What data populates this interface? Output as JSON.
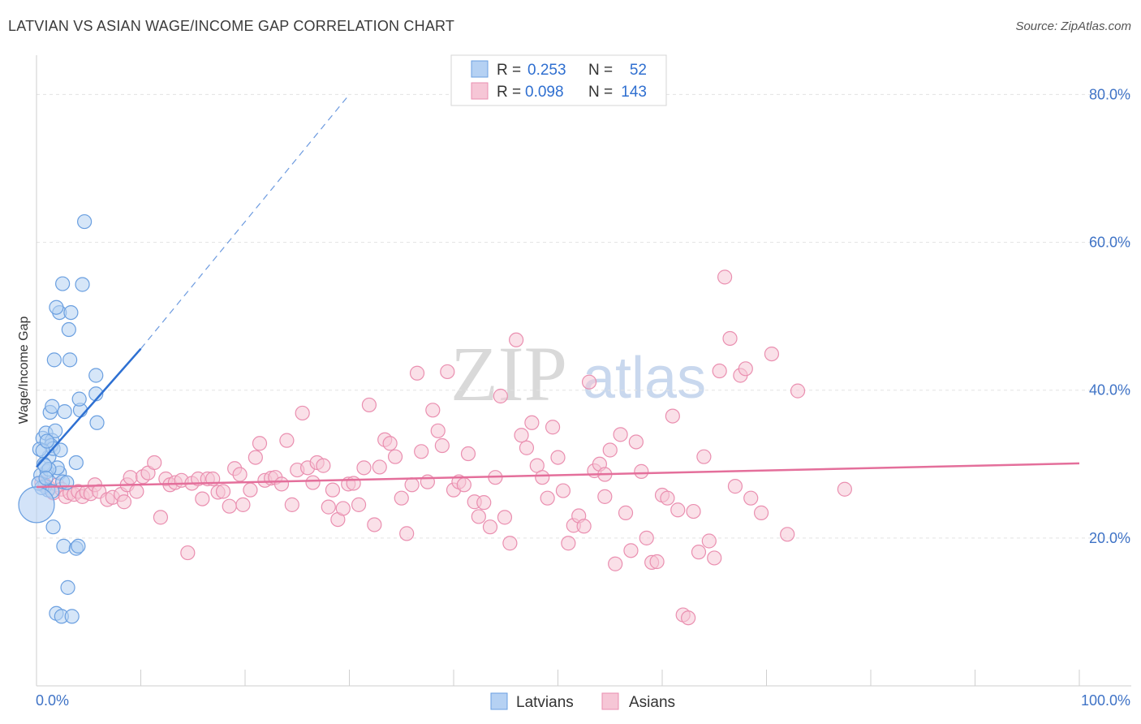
{
  "title": "LATVIAN VS ASIAN WAGE/INCOME GAP CORRELATION CHART",
  "source": "Source: ZipAtlas.com",
  "colors": {
    "latvian_fill": "#b5d1f3",
    "latvian_stroke": "#6a9fe0",
    "latvian_line": "#2e70d2",
    "asian_fill": "#f6c6d6",
    "asian_stroke": "#ea8fb0",
    "asian_line": "#e46f9b",
    "tick_label": "#3f73c6",
    "grid": "#e3e3e3"
  },
  "stats": [
    {
      "r_label": "R =",
      "r_value": "0.253",
      "n_label": "N =",
      "n_value": "52"
    },
    {
      "r_label": "R =",
      "r_value": "0.098",
      "n_label": "N =",
      "n_value": "143"
    }
  ],
  "watermark": {
    "zip": "ZIP",
    "atlas": "atlas"
  },
  "chart_data": {
    "type": "scatter",
    "title": "LATVIAN VS ASIAN WAGE/INCOME GAP CORRELATION CHART",
    "xlabel": "",
    "ylabel": "Wage/Income Gap",
    "xlim": [
      0,
      100
    ],
    "ylim": [
      0,
      84
    ],
    "x_tick_labels": [
      "0.0%",
      "100.0%"
    ],
    "y_ticks": [
      20,
      40,
      60,
      80
    ],
    "y_tick_labels": [
      "20.0%",
      "40.0%",
      "60.0%",
      "80.0%"
    ],
    "legend": [
      "Latvians",
      "Asians"
    ],
    "series": [
      {
        "name": "Latvians",
        "r": 0.253,
        "n": 52,
        "trend": {
          "x0": 0,
          "y0": 29.6,
          "x1": 10,
          "y1": 45.6,
          "dashed_to_x": 30,
          "dashed_to_y": 80
        },
        "points": [
          [
            0.4,
            28.5
          ],
          [
            0.8,
            27
          ],
          [
            1.0,
            29
          ],
          [
            1.2,
            31
          ],
          [
            0.6,
            33.5
          ],
          [
            0.9,
            34.2
          ],
          [
            1.5,
            33.2
          ],
          [
            1.4,
            32.5
          ],
          [
            1.8,
            34.5
          ],
          [
            1.1,
            26.5
          ],
          [
            2.2,
            28.8
          ],
          [
            2.0,
            29.5
          ],
          [
            2.5,
            27.6
          ],
          [
            3.8,
            30.2
          ],
          [
            1.3,
            37
          ],
          [
            1.5,
            37.8
          ],
          [
            2.7,
            37.1
          ],
          [
            4.2,
            37.3
          ],
          [
            4.1,
            38.8
          ],
          [
            5.7,
            39.5
          ],
          [
            5.7,
            42
          ],
          [
            5.8,
            35.6
          ],
          [
            1.7,
            44.1
          ],
          [
            3.2,
            44.1
          ],
          [
            3.1,
            48.2
          ],
          [
            2.2,
            50.5
          ],
          [
            1.9,
            51.2
          ],
          [
            3.3,
            50.5
          ],
          [
            2.5,
            54.4
          ],
          [
            4.4,
            54.3
          ],
          [
            4.6,
            62.8
          ],
          [
            1.6,
            21.5
          ],
          [
            2.6,
            18.9
          ],
          [
            3.8,
            18.6
          ],
          [
            4.0,
            18.9
          ],
          [
            3.0,
            13.3
          ],
          [
            1.9,
            9.8
          ],
          [
            2.4,
            9.4
          ],
          [
            3.4,
            9.4
          ],
          [
            0.5,
            26.8
          ],
          [
            0.7,
            30
          ],
          [
            1.6,
            32.1
          ],
          [
            2.3,
            31.9
          ],
          [
            0.3,
            32
          ],
          [
            0.6,
            31.8
          ],
          [
            1.2,
            29.3
          ],
          [
            1.0,
            33.1
          ],
          [
            2.9,
            27.5
          ],
          [
            1.5,
            26.3
          ],
          [
            0.2,
            27.4
          ],
          [
            0.8,
            29.8
          ],
          [
            0.9,
            28.1
          ]
        ],
        "big_point": [
          0,
          24.5
        ]
      },
      {
        "name": "Asians",
        "r": 0.098,
        "n": 143,
        "trend": {
          "x0": 0,
          "y0": 26.9,
          "x1": 100,
          "y1": 30.1
        },
        "points": [
          [
            0.5,
            27.5
          ],
          [
            0.8,
            27.2
          ],
          [
            1.2,
            26.8
          ],
          [
            1.6,
            26.1
          ],
          [
            2.0,
            27.2
          ],
          [
            2.4,
            26.6
          ],
          [
            2.8,
            25.6
          ],
          [
            3.2,
            26.1
          ],
          [
            3.6,
            25.9
          ],
          [
            4.0,
            26.3
          ],
          [
            4.4,
            25.6
          ],
          [
            4.8,
            26.2
          ],
          [
            5.2,
            26.0
          ],
          [
            5.6,
            27.2
          ],
          [
            6.0,
            26.3
          ],
          [
            6.8,
            25.2
          ],
          [
            7.3,
            25.5
          ],
          [
            8.1,
            25.9
          ],
          [
            8.4,
            24.9
          ],
          [
            8.7,
            27.2
          ],
          [
            9.0,
            28.2
          ],
          [
            9.6,
            26.3
          ],
          [
            10.2,
            28.3
          ],
          [
            10.7,
            28.8
          ],
          [
            11.3,
            30.2
          ],
          [
            11.9,
            22.8
          ],
          [
            12.4,
            28.0
          ],
          [
            12.8,
            27.2
          ],
          [
            13.3,
            27.5
          ],
          [
            13.9,
            27.8
          ],
          [
            14.5,
            18.0
          ],
          [
            14.9,
            27.4
          ],
          [
            15.5,
            28.0
          ],
          [
            15.9,
            25.3
          ],
          [
            16.4,
            28.0
          ],
          [
            16.9,
            28.0
          ],
          [
            17.4,
            26.2
          ],
          [
            17.9,
            26.3
          ],
          [
            18.5,
            24.3
          ],
          [
            19.0,
            29.4
          ],
          [
            19.5,
            28.6
          ],
          [
            19.8,
            24.5
          ],
          [
            20.5,
            26.5
          ],
          [
            21.0,
            30.9
          ],
          [
            21.4,
            32.8
          ],
          [
            21.9,
            27.8
          ],
          [
            22.5,
            28.1
          ],
          [
            22.9,
            28.2
          ],
          [
            23.5,
            27.3
          ],
          [
            24.0,
            33.2
          ],
          [
            24.5,
            24.5
          ],
          [
            25.0,
            29.2
          ],
          [
            25.5,
            36.9
          ],
          [
            26.0,
            29.5
          ],
          [
            26.5,
            27.5
          ],
          [
            26.9,
            30.2
          ],
          [
            27.5,
            29.8
          ],
          [
            28.0,
            24.2
          ],
          [
            28.4,
            26.5
          ],
          [
            28.9,
            22.5
          ],
          [
            29.4,
            24.0
          ],
          [
            29.9,
            27.3
          ],
          [
            30.4,
            27.4
          ],
          [
            30.9,
            24.5
          ],
          [
            31.4,
            29.5
          ],
          [
            31.9,
            38.0
          ],
          [
            32.4,
            21.8
          ],
          [
            32.9,
            29.6
          ],
          [
            33.4,
            33.3
          ],
          [
            33.9,
            32.8
          ],
          [
            34.4,
            31.0
          ],
          [
            35.0,
            25.4
          ],
          [
            35.5,
            20.6
          ],
          [
            36.0,
            27.2
          ],
          [
            36.5,
            42.3
          ],
          [
            36.9,
            31.7
          ],
          [
            37.5,
            27.6
          ],
          [
            38.0,
            37.3
          ],
          [
            38.5,
            34.5
          ],
          [
            38.9,
            32.5
          ],
          [
            39.4,
            42.5
          ],
          [
            40.0,
            26.5
          ],
          [
            40.5,
            27.6
          ],
          [
            41.0,
            27.2
          ],
          [
            41.4,
            31.4
          ],
          [
            42.0,
            24.9
          ],
          [
            42.4,
            22.9
          ],
          [
            42.9,
            24.8
          ],
          [
            43.5,
            21.5
          ],
          [
            44.0,
            28.2
          ],
          [
            44.5,
            39.2
          ],
          [
            44.9,
            22.8
          ],
          [
            45.4,
            19.3
          ],
          [
            46.0,
            46.8
          ],
          [
            46.5,
            33.9
          ],
          [
            47.0,
            32.2
          ],
          [
            47.5,
            35.6
          ],
          [
            48.0,
            29.8
          ],
          [
            48.5,
            28.2
          ],
          [
            49.0,
            25.4
          ],
          [
            49.5,
            35.0
          ],
          [
            50.0,
            30.9
          ],
          [
            50.5,
            26.4
          ],
          [
            51.0,
            19.3
          ],
          [
            51.5,
            21.7
          ],
          [
            52.0,
            23.0
          ],
          [
            52.5,
            21.6
          ],
          [
            53.0,
            41.1
          ],
          [
            53.5,
            29.1
          ],
          [
            54.0,
            30.0
          ],
          [
            54.5,
            25.6
          ],
          [
            55.0,
            31.9
          ],
          [
            55.5,
            16.5
          ],
          [
            56.0,
            34.0
          ],
          [
            56.5,
            23.4
          ],
          [
            57.0,
            18.3
          ],
          [
            57.5,
            33.0
          ],
          [
            58.0,
            29.0
          ],
          [
            58.5,
            20.0
          ],
          [
            59.0,
            16.7
          ],
          [
            59.5,
            16.8
          ],
          [
            60.0,
            25.8
          ],
          [
            60.5,
            25.4
          ],
          [
            61.0,
            36.5
          ],
          [
            61.5,
            23.8
          ],
          [
            62.0,
            9.6
          ],
          [
            62.5,
            9.2
          ],
          [
            63.0,
            23.6
          ],
          [
            63.5,
            18.1
          ],
          [
            64.0,
            31.0
          ],
          [
            64.5,
            19.6
          ],
          [
            65.0,
            17.3
          ],
          [
            65.5,
            42.6
          ],
          [
            66.0,
            55.3
          ],
          [
            66.5,
            47.0
          ],
          [
            67.0,
            27.0
          ],
          [
            67.5,
            42.0
          ],
          [
            68.0,
            42.9
          ],
          [
            68.5,
            25.4
          ],
          [
            69.5,
            23.4
          ],
          [
            70.5,
            44.9
          ],
          [
            72.0,
            20.5
          ],
          [
            73.0,
            39.9
          ],
          [
            77.5,
            26.6
          ],
          [
            54.5,
            28.6
          ]
        ]
      }
    ]
  }
}
